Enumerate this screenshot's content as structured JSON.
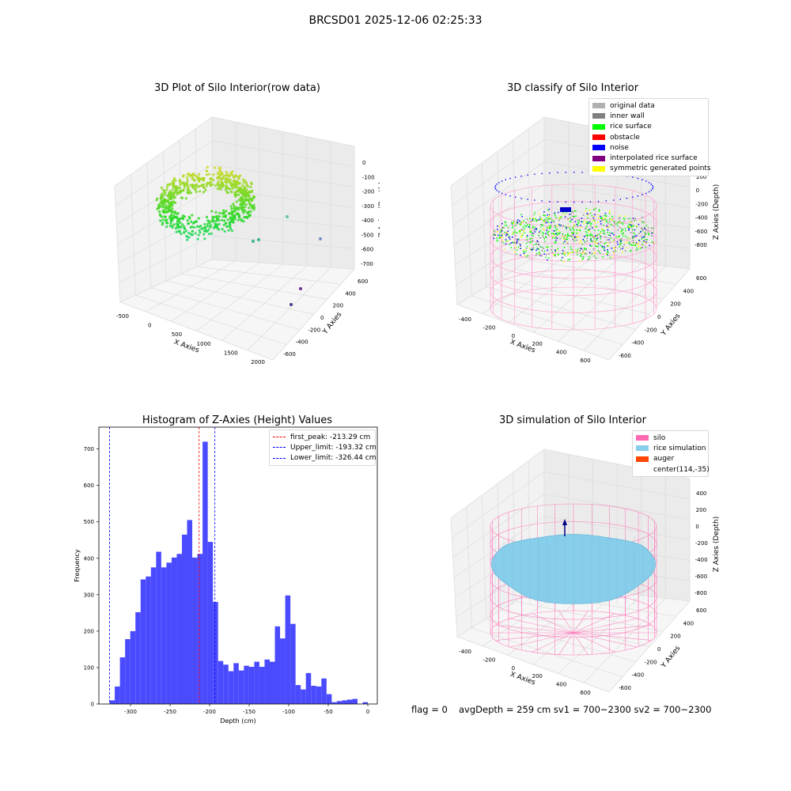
{
  "figure_title": "BRCSD01 2025-12-06 02:25:33",
  "panels": {
    "raw": {
      "title": "3D Plot of Silo Interior(row data)",
      "xlabel": "X Axies",
      "ylabel": "Y Axies",
      "zlabel": "Z Axies (Depth)",
      "xticks": [
        "-500",
        "0",
        "500",
        "1000",
        "1500",
        "2000"
      ],
      "yticks": [
        "-600",
        "-400",
        "-200",
        "0",
        "200",
        "400",
        "600"
      ],
      "zticks": [
        "0",
        "-100",
        "-200",
        "-300",
        "-400",
        "-500",
        "-600",
        "-700"
      ],
      "point_color": "#3cb38c"
    },
    "classify": {
      "title": "3D classify of Silo Interior",
      "xlabel": "X Axies",
      "ylabel": "Y Axies",
      "zlabel": "Z Axies (Depth)",
      "xticks": [
        "-400",
        "-200",
        "0",
        "200",
        "400",
        "600"
      ],
      "yticks": [
        "-600",
        "-400",
        "-200",
        "0",
        "200",
        "400",
        "600"
      ],
      "zticks": [
        "200",
        "0",
        "-200",
        "-400",
        "-600",
        "-800"
      ],
      "legend": [
        {
          "label": "original data",
          "color": "#b0b0b0"
        },
        {
          "label": "inner wall",
          "color": "#808080"
        },
        {
          "label": "rice surface",
          "color": "#00ff00"
        },
        {
          "label": "obstacle",
          "color": "#ff0000"
        },
        {
          "label": "noise",
          "color": "#0000ff"
        },
        {
          "label": "interpolated rice surface",
          "color": "#800080"
        },
        {
          "label": "symmetric generated points",
          "color": "#ffff00"
        }
      ]
    },
    "simulation": {
      "title": "3D simulation of Silo Interior",
      "xlabel": "X Axies",
      "ylabel": "Y Axies",
      "zlabel": "Z Axies (Depth)",
      "xticks": [
        "-400",
        "-200",
        "0",
        "200",
        "400",
        "600"
      ],
      "yticks": [
        "-600",
        "-400",
        "-200",
        "0",
        "200",
        "400",
        "600"
      ],
      "zticks": [
        "400",
        "200",
        "0",
        "-200",
        "-400",
        "-600",
        "-800"
      ],
      "legend": [
        {
          "label": "silo",
          "color": "#ff69b4"
        },
        {
          "label": "rice simulation",
          "color": "#87ceeb"
        },
        {
          "label": "auger",
          "color": "#ff4500"
        },
        {
          "label": "center(114,-35)",
          "color": ""
        }
      ]
    }
  },
  "footer": {
    "flag": "flag = 0",
    "avg": "avgDepth = 259 cm  sv1 = 700~2300  sv2 = 700~2300"
  },
  "chart_data": {
    "type": "bar",
    "title": "Histogram of Z-Axies (Height) Values",
    "xlabel": "Depth (cm)",
    "ylabel": "Frequency",
    "xlim": [
      -340,
      12
    ],
    "ylim": [
      0,
      760
    ],
    "xticks": [
      -300,
      -250,
      -200,
      -150,
      -100,
      -50,
      0
    ],
    "yticks": [
      0,
      100,
      200,
      300,
      400,
      500,
      600,
      700
    ],
    "bin_width": 6.53,
    "bin_start": -326.44,
    "bar_color": "#4a4aff",
    "values": [
      10,
      48,
      128,
      178,
      200,
      252,
      342,
      350,
      375,
      418,
      375,
      388,
      402,
      412,
      465,
      505,
      402,
      412,
      720,
      445,
      280,
      118,
      108,
      90,
      112,
      92,
      105,
      102,
      116,
      102,
      122,
      116,
      213,
      180,
      298,
      220,
      52,
      40,
      85,
      50,
      48,
      70,
      27,
      5,
      8,
      10,
      12,
      14,
      0,
      5
    ],
    "vlines": [
      {
        "label": "first_peak: -213.29 cm",
        "x": -213.29,
        "color": "#ff0000"
      },
      {
        "label": "Upper_limit: -193.32 cm",
        "x": -193.32,
        "color": "#0000ff"
      },
      {
        "label": "Lower_limit: -326.44 cm",
        "x": -326.44,
        "color": "#0000ff"
      }
    ]
  }
}
